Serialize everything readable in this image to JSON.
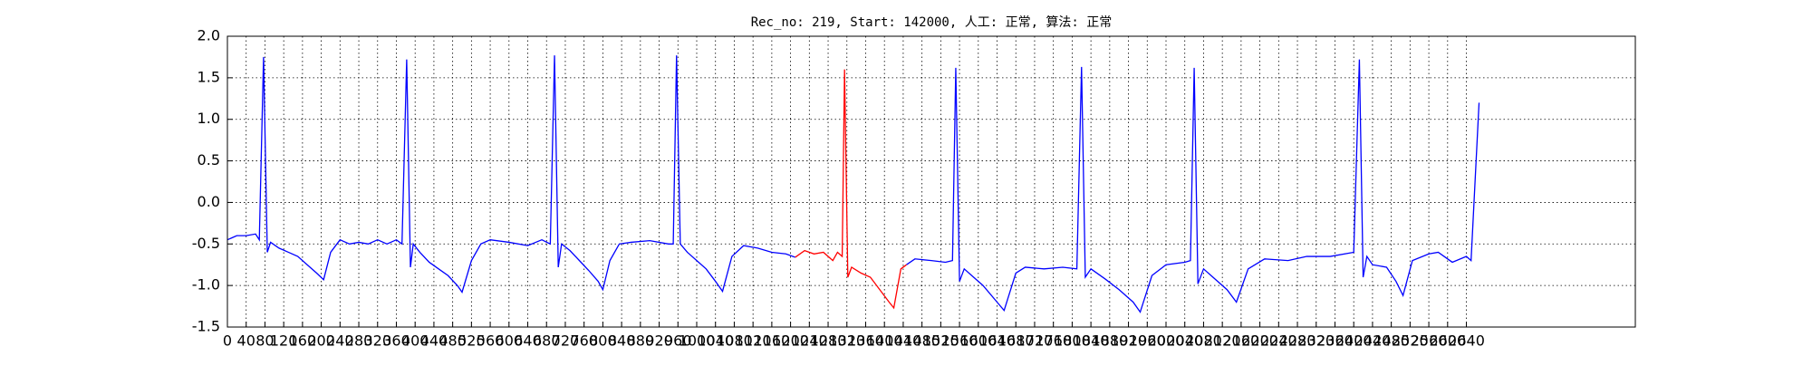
{
  "chart_data": {
    "type": "line",
    "title": "Rec_no: 219, Start: 142000, 人工: 正常, 算法: 正常",
    "xlim": [
      0,
      3000
    ],
    "ylim": [
      -1.5,
      2.0
    ],
    "grid": true,
    "xticks": [
      0,
      40,
      80,
      120,
      160,
      200,
      240,
      280,
      320,
      360,
      400,
      440,
      480,
      520,
      560,
      600,
      640,
      680,
      720,
      760,
      800,
      840,
      880,
      920,
      960,
      1000,
      1040,
      1080,
      1120,
      1160,
      1200,
      1240,
      1280,
      1320,
      1360,
      1400,
      1440,
      1480,
      1520,
      1560,
      1600,
      1640,
      1680,
      1720,
      1760,
      1800,
      1840,
      1880,
      1920,
      1960,
      2000,
      2040,
      2080,
      2120,
      2160,
      2200,
      2240,
      2280,
      2320,
      2360,
      2400,
      2440,
      2480,
      2520,
      2560,
      2600,
      2640
    ],
    "yticks": [
      {
        "value": -1.5,
        "label": "-1.5"
      },
      {
        "value": -1,
        "label": "-1.0"
      },
      {
        "value": -0.5,
        "label": "-0.5"
      },
      {
        "value": 0,
        "label": "0.0"
      },
      {
        "value": 0.5,
        "label": "0.5"
      },
      {
        "value": 1,
        "label": "1.0"
      },
      {
        "value": 1.5,
        "label": "1.5"
      },
      {
        "value": 2,
        "label": "2.0"
      }
    ],
    "series": [
      {
        "color": "#0000ff",
        "x": [
          0,
          20,
          40,
          60,
          68,
          77,
          85,
          92,
          110,
          130,
          150,
          170,
          190,
          205,
          220,
          240,
          260,
          280,
          300,
          320,
          340,
          360,
          372,
          382,
          390,
          396,
          410,
          430,
          450,
          470,
          490,
          500,
          520,
          540,
          560,
          600,
          640,
          670,
          688,
          697,
          705,
          712,
          730,
          750,
          770,
          790,
          800,
          815,
          835,
          860,
          900,
          940,
          950,
          957,
          965,
          980,
          1000,
          1020,
          1040,
          1055,
          1075,
          1100,
          1130,
          1160,
          1190,
          1210,
          1300,
          1447,
          1465,
          1500,
          1530,
          1545,
          1552,
          1560,
          1570,
          1590,
          1610,
          1640,
          1655,
          1680,
          1700,
          1740,
          1780,
          1810,
          1820,
          1828,
          1840,
          1870,
          1900,
          1930,
          1945,
          1970,
          2000,
          2040,
          2052,
          2060,
          2068,
          2080,
          2100,
          2130,
          2150,
          2175,
          2210,
          2260,
          2300,
          2350,
          2400,
          2412,
          2420,
          2428,
          2440,
          2470,
          2490,
          2505,
          2525,
          2560,
          2580,
          2610,
          2640,
          2650,
          2667
        ],
        "values": [
          -0.45,
          -0.4,
          -0.4,
          -0.38,
          -0.45,
          1.75,
          -0.6,
          -0.48,
          -0.55,
          -0.6,
          -0.65,
          -0.75,
          -0.85,
          -0.93,
          -0.6,
          -0.45,
          -0.5,
          -0.48,
          -0.5,
          -0.45,
          -0.5,
          -0.45,
          -0.5,
          1.72,
          -0.78,
          -0.5,
          -0.6,
          -0.72,
          -0.8,
          -0.88,
          -1.0,
          -1.08,
          -0.7,
          -0.5,
          -0.45,
          -0.48,
          -0.52,
          -0.45,
          -0.5,
          1.77,
          -0.78,
          -0.5,
          -0.58,
          -0.7,
          -0.82,
          -0.95,
          -1.05,
          -0.7,
          -0.5,
          -0.48,
          -0.46,
          -0.5,
          -0.5,
          1.77,
          -0.5,
          -0.6,
          -0.7,
          -0.8,
          -0.95,
          -1.07,
          -0.65,
          -0.52,
          -0.55,
          -0.6,
          -0.62,
          -0.66,
          null,
          -0.75,
          -0.68,
          -0.7,
          -0.72,
          -0.7,
          1.62,
          -0.95,
          -0.8,
          -0.9,
          -1.0,
          -1.2,
          -1.3,
          -0.85,
          -0.78,
          -0.8,
          -0.78,
          -0.8,
          1.63,
          -0.9,
          -0.8,
          -0.92,
          -1.05,
          -1.2,
          -1.32,
          -0.88,
          -0.75,
          -0.72,
          -0.7,
          1.62,
          -0.98,
          -0.8,
          -0.9,
          -1.05,
          -1.2,
          -0.8,
          -0.68,
          -0.7,
          -0.65,
          -0.65,
          -0.6,
          1.72,
          -0.9,
          -0.65,
          -0.75,
          -0.78,
          -0.95,
          -1.12,
          -0.7,
          -0.62,
          -0.6,
          -0.72,
          -0.65,
          -0.7,
          1.2
        ]
      },
      {
        "color": "#ff0000",
        "x": [
          1210,
          1230,
          1250,
          1270,
          1290,
          1300,
          1310,
          1315,
          1322,
          1330,
          1350,
          1370,
          1390,
          1410,
          1420,
          1435,
          1447
        ],
        "values": [
          -0.66,
          -0.58,
          -0.62,
          -0.6,
          -0.7,
          -0.6,
          -0.65,
          1.6,
          -0.9,
          -0.78,
          -0.85,
          -0.9,
          -1.05,
          -1.2,
          -1.27,
          -0.8,
          -0.75
        ]
      }
    ]
  }
}
